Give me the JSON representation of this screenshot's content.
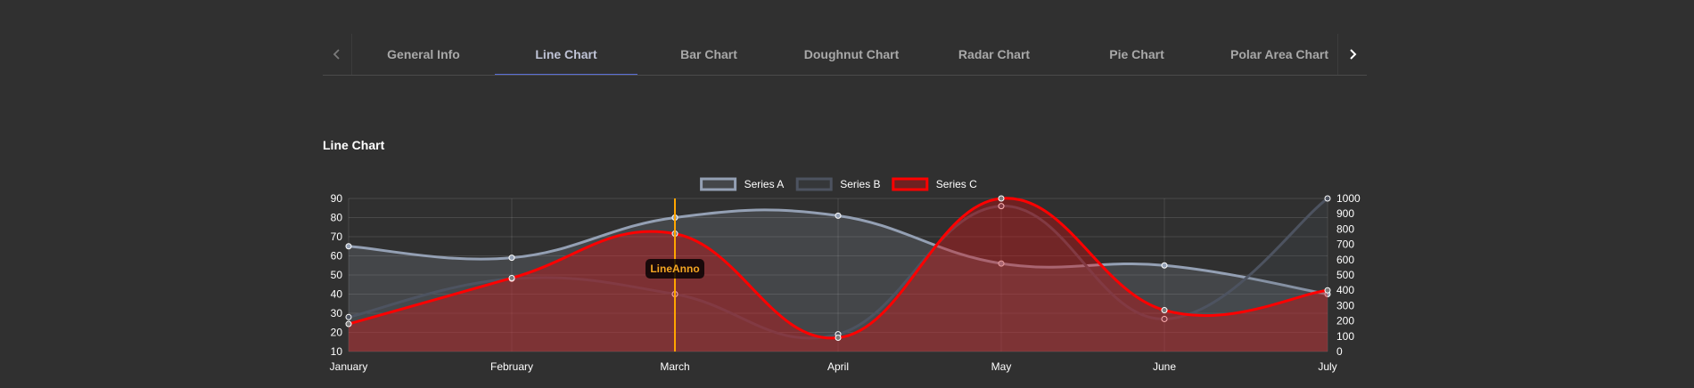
{
  "tabs": {
    "prev_icon": "chevron-left-icon",
    "next_icon": "chevron-right-icon",
    "items": [
      {
        "label": "General Info",
        "active": false
      },
      {
        "label": "Line Chart",
        "active": true
      },
      {
        "label": "Bar Chart",
        "active": false
      },
      {
        "label": "Doughnut Chart",
        "active": false
      },
      {
        "label": "Radar Chart",
        "active": false
      },
      {
        "label": "Pie Chart",
        "active": false
      },
      {
        "label": "Polar Area Chart",
        "active": false
      }
    ]
  },
  "section": {
    "title": "Line Chart"
  },
  "chart_data": {
    "type": "line",
    "categories": [
      "January",
      "February",
      "March",
      "April",
      "May",
      "June",
      "July"
    ],
    "left_axis": {
      "min": 10,
      "max": 90,
      "ticks": [
        10,
        20,
        30,
        40,
        50,
        60,
        70,
        80,
        90
      ]
    },
    "right_axis": {
      "min": 0,
      "max": 1000,
      "ticks": [
        0,
        100,
        200,
        300,
        400,
        500,
        600,
        700,
        800,
        900,
        1000
      ]
    },
    "grid": true,
    "legend_position": "top",
    "series": [
      {
        "name": "Series A",
        "axis": "left",
        "values": [
          65,
          59,
          80,
          81,
          56,
          55,
          40
        ],
        "color": "#94a0b4",
        "fill": "rgba(148,159,177,0.2)"
      },
      {
        "name": "Series B",
        "axis": "left",
        "values": [
          28,
          48,
          40,
          19,
          86,
          27,
          90
        ],
        "color": "#4d5360",
        "fill": "rgba(77,83,96,0.2)"
      },
      {
        "name": "Series C",
        "axis": "right",
        "values": [
          180,
          480,
          770,
          90,
          1000,
          270,
          400
        ],
        "color": "#ff0000",
        "fill": "rgba(255,0,0,0.3)"
      }
    ],
    "annotation": {
      "label": "LineAnno",
      "at": "March",
      "color": "#ffa500"
    }
  }
}
